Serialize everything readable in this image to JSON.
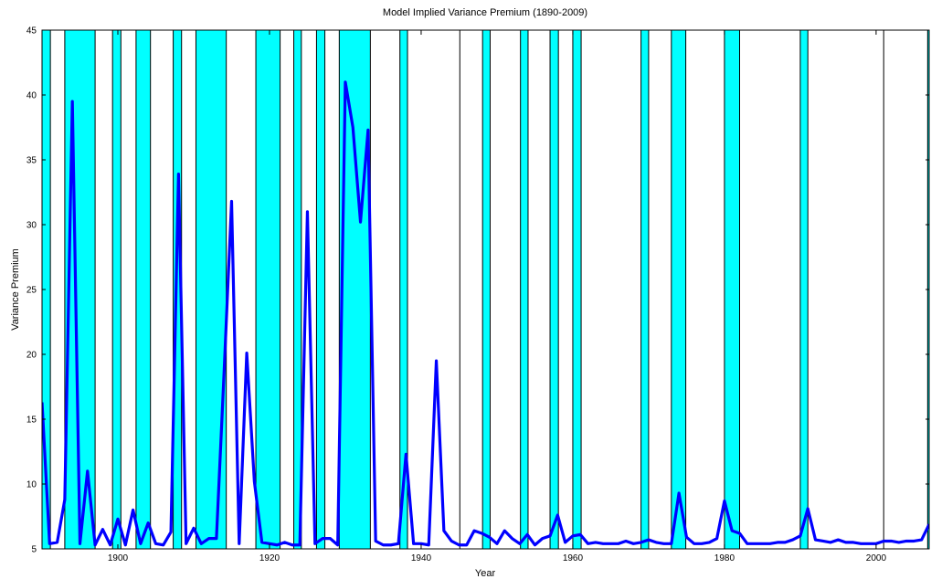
{
  "chart_data": {
    "type": "line",
    "title": "Model Implied Variance Premium (1890-2009)",
    "xlabel": "Year",
    "ylabel": "Variance Premium",
    "x": [
      1890,
      1891,
      1892,
      1893,
      1894,
      1895,
      1896,
      1897,
      1898,
      1899,
      1900,
      1901,
      1902,
      1903,
      1904,
      1905,
      1906,
      1907,
      1908,
      1909,
      1910,
      1911,
      1912,
      1913,
      1914,
      1915,
      1916,
      1917,
      1918,
      1919,
      1920,
      1921,
      1922,
      1923,
      1924,
      1925,
      1926,
      1927,
      1928,
      1929,
      1930,
      1931,
      1932,
      1933,
      1934,
      1935,
      1936,
      1937,
      1938,
      1939,
      1940,
      1941,
      1942,
      1943,
      1944,
      1945,
      1946,
      1947,
      1948,
      1949,
      1950,
      1951,
      1952,
      1953,
      1954,
      1955,
      1956,
      1957,
      1958,
      1959,
      1960,
      1961,
      1962,
      1963,
      1964,
      1965,
      1966,
      1967,
      1968,
      1969,
      1970,
      1971,
      1972,
      1973,
      1974,
      1975,
      1976,
      1977,
      1978,
      1979,
      1980,
      1981,
      1982,
      1983,
      1984,
      1985,
      1986,
      1987,
      1988,
      1989,
      1990,
      1991,
      1992,
      1993,
      1994,
      1995,
      1996,
      1997,
      1998,
      1999,
      2000,
      2001,
      2002,
      2003,
      2004,
      2005,
      2006,
      2007
    ],
    "values": [
      16.3,
      5.4,
      5.5,
      8.8,
      39.5,
      5.4,
      11,
      5.3,
      6.5,
      5.3,
      7.3,
      5.3,
      8,
      5.4,
      7,
      5.4,
      5.3,
      6.3,
      33.9,
      5.4,
      6.6,
      5.4,
      5.8,
      5.8,
      18.5,
      31.8,
      5.4,
      20.1,
      10.2,
      5.5,
      5.4,
      5.3,
      5.5,
      5.3,
      5.3,
      31,
      5.4,
      5.8,
      5.8,
      5.3,
      41,
      37.5,
      30.2,
      37.3,
      5.6,
      5.3,
      5.3,
      5.4,
      12.3,
      5.4,
      5.4,
      5.3,
      19.5,
      6.4,
      5.6,
      5.3,
      5.3,
      6.4,
      6.2,
      5.9,
      5.4,
      6.4,
      5.8,
      5.4,
      6.1,
      5.3,
      5.8,
      6,
      7.6,
      5.5,
      6,
      6.1,
      5.4,
      5.5,
      5.4,
      5.4,
      5.4,
      5.6,
      5.4,
      5.5,
      5.7,
      5.5,
      5.4,
      5.4,
      9.3,
      5.9,
      5.4,
      5.4,
      5.5,
      5.8,
      8.7,
      6.4,
      6.2,
      5.4,
      5.4,
      5.4,
      5.4,
      5.5,
      5.5,
      5.7,
      6,
      8.1,
      5.7,
      5.6,
      5.5,
      5.7,
      5.5,
      5.5,
      5.4,
      5.4,
      5.4,
      5.6,
      5.6,
      5.5,
      5.6,
      5.6,
      5.7,
      6.9
    ],
    "color": "#0000ff",
    "shade_color": "#00ffff",
    "shaded_periods": [
      [
        1890,
        1891.1
      ],
      [
        1893,
        1897
      ],
      [
        1899.3,
        1900.4
      ],
      [
        1902.4,
        1904.3
      ],
      [
        1907.3,
        1908.4
      ],
      [
        1910.3,
        1914.3
      ],
      [
        1918.2,
        1921.4
      ],
      [
        1923.2,
        1924.2
      ],
      [
        1926.2,
        1927.3
      ],
      [
        1929.2,
        1933.3
      ],
      [
        1937.2,
        1938.2
      ],
      [
        1945.1,
        1945.1
      ],
      [
        1948.1,
        1949.1
      ],
      [
        1953.1,
        1954.1
      ],
      [
        1957,
        1958.1
      ],
      [
        1960,
        1961.1
      ],
      [
        1969,
        1970
      ],
      [
        1973,
        1974.9
      ],
      [
        1980,
        1982
      ],
      [
        1990,
        1991
      ],
      [
        2001,
        2001
      ],
      [
        2006.8,
        2007
      ]
    ],
    "xlim": [
      1890,
      2007
    ],
    "xticks": [
      1900,
      1920,
      1940,
      1960,
      1980,
      2000
    ],
    "ylim": [
      5,
      45
    ],
    "yticks": [
      5,
      10,
      15,
      20,
      25,
      30,
      35,
      40,
      45
    ]
  }
}
